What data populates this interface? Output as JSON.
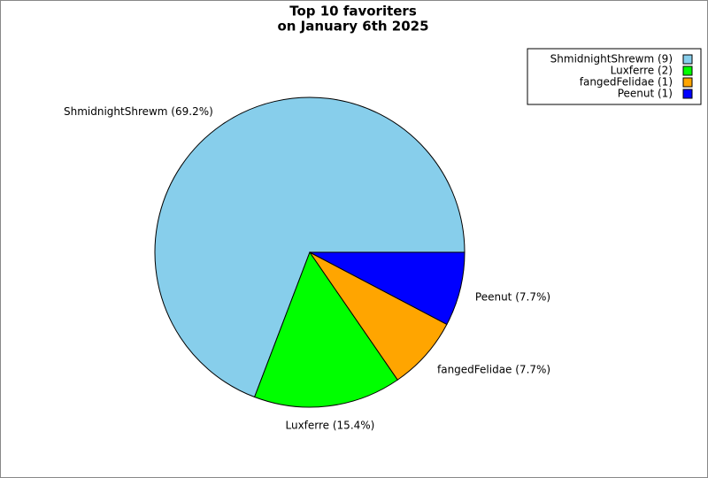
{
  "chart_data": {
    "type": "pie",
    "title": "Top 10 favoriters",
    "subtitle": "on January 6th 2025",
    "values": [
      69.2,
      15.4,
      7.7,
      7.7
    ],
    "value_labels": [
      "ShmidnightShrewm (69.2%)",
      "Luxferre (15.4%)",
      "fangedFelidae (7.7%)",
      "Peenut (7.7%)"
    ],
    "counts": [
      9,
      2,
      1,
      1
    ],
    "legend_labels": [
      "ShmidnightShrewm (9)",
      "Luxferre (2)",
      "fangedFelidae (1)",
      "Peenut (1)"
    ],
    "colors": [
      "#87ceeb",
      "#00ff00",
      "#ffa500",
      "#0000ff"
    ],
    "legend": "upper right"
  }
}
